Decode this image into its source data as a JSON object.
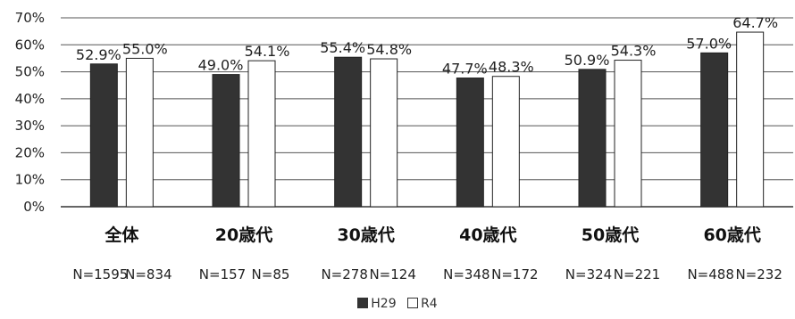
{
  "chart_data": {
    "type": "bar",
    "categories": [
      "全体",
      "20歳代",
      "30歳代",
      "40歳代",
      "50歳代",
      "60歳代"
    ],
    "series": [
      {
        "name": "H29",
        "color": "#333333",
        "values": [
          52.9,
          49.0,
          55.4,
          47.7,
          50.9,
          57.0
        ],
        "labels": [
          "52.9%",
          "49.0%",
          "55.4%",
          "47.7%",
          "50.9%",
          "57.0%"
        ]
      },
      {
        "name": "R4",
        "color": "#ffffff",
        "values": [
          55.0,
          54.1,
          54.8,
          48.3,
          54.3,
          64.7
        ],
        "labels": [
          "55.0%",
          "54.1%",
          "54.8%",
          "48.3%",
          "54.3%",
          "64.7%"
        ]
      }
    ],
    "n_labels": [
      [
        "N=1595",
        "N=834"
      ],
      [
        "N=157",
        "N=85"
      ],
      [
        "N=278",
        "N=124"
      ],
      [
        "N=348",
        "N=172"
      ],
      [
        "N=324",
        "N=221"
      ],
      [
        "N=488",
        "N=232"
      ]
    ],
    "yticks": [
      "0%",
      "10%",
      "20%",
      "30%",
      "40%",
      "50%",
      "60%",
      "70%"
    ],
    "ylim": [
      0,
      70
    ],
    "grid": true,
    "legend_position": "bottom"
  }
}
